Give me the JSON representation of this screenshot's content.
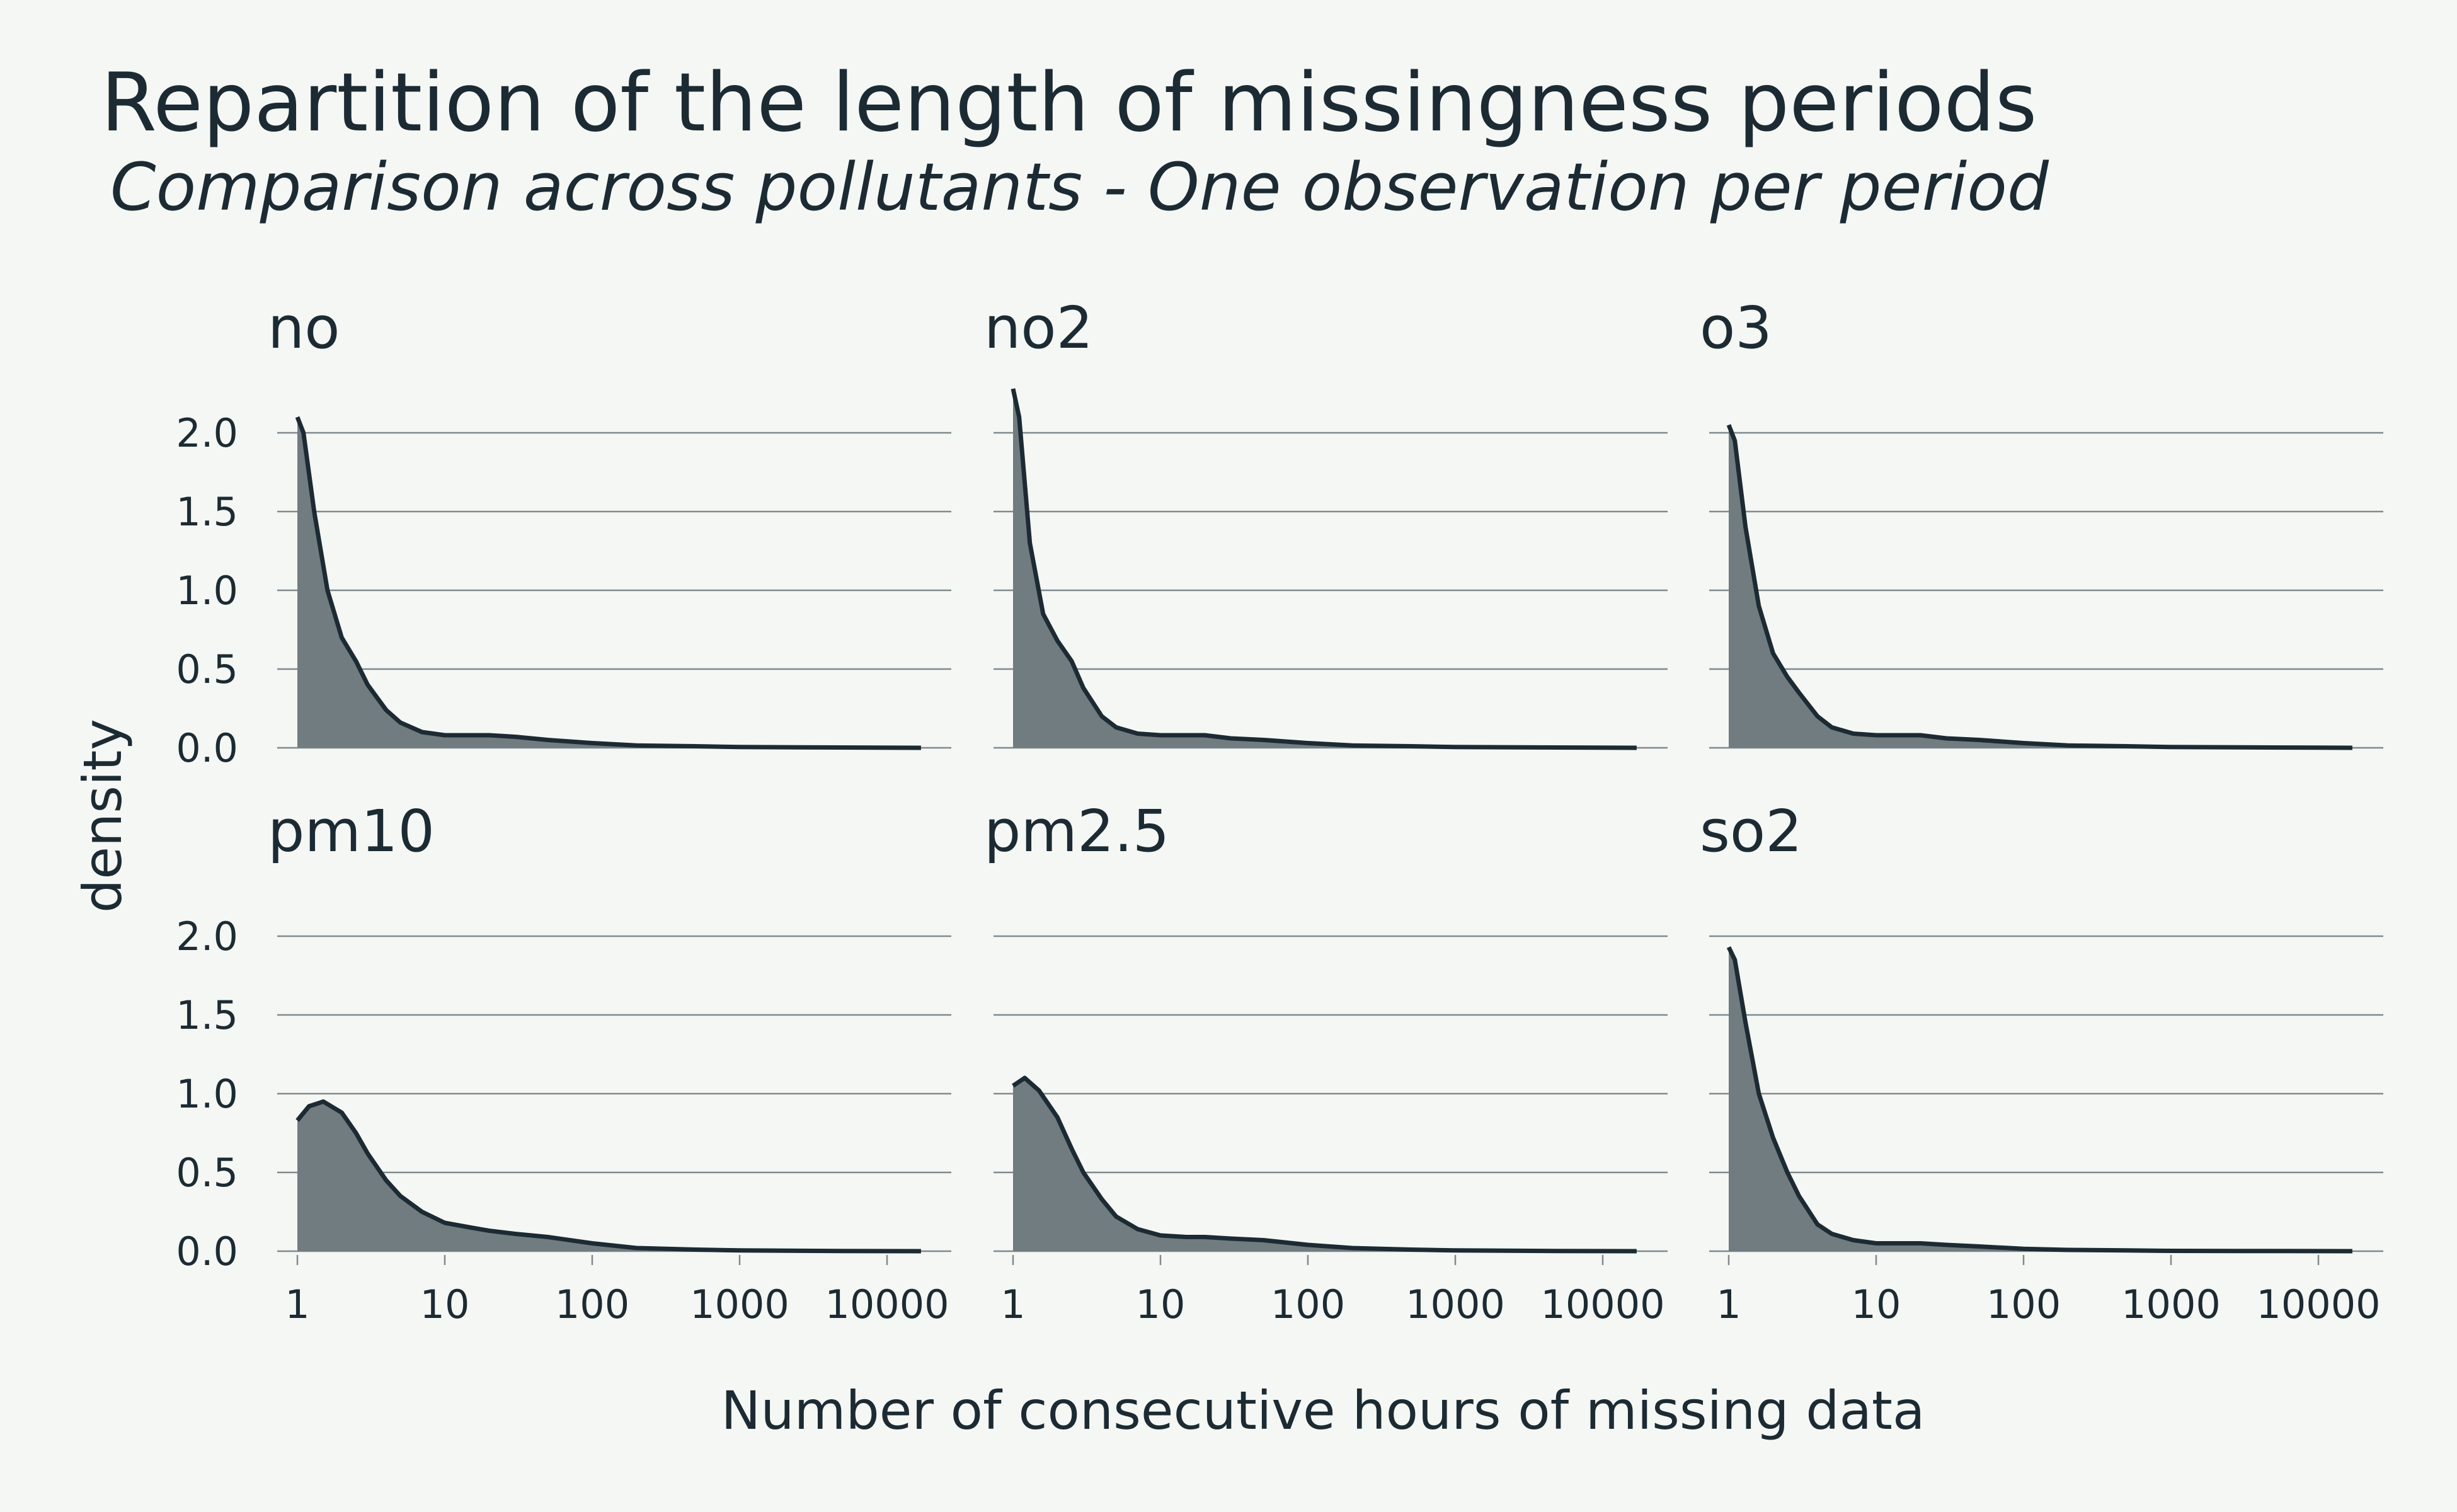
{
  "chart_data": {
    "type": "area",
    "title": "Repartition of the length of missingness periods",
    "subtitle": "Comparison across pollutants - One observation per period",
    "xlabel": "Number of consecutive hours of missing data",
    "ylabel": "density",
    "x_scale": "log10",
    "x_ticks": [
      "1",
      "10",
      "100",
      "1000",
      "10000"
    ],
    "xlim": [
      1,
      17000
    ],
    "y_ticks": [
      "0.0",
      "0.5",
      "1.0",
      "1.5",
      "2.0"
    ],
    "ylim": [
      0,
      2.3
    ],
    "grid": "horizontal",
    "colors": {
      "fill": "#717c80",
      "line": "#1c2b33",
      "grid": "#7f8a8e",
      "background": "#f5f7f4"
    },
    "panels": [
      {
        "name": "no",
        "x": [
          1,
          1.1,
          1.3,
          1.6,
          2,
          2.5,
          3,
          4,
          5,
          7,
          10,
          15,
          20,
          30,
          50,
          100,
          200,
          500,
          1000,
          5000,
          17000
        ],
        "y": [
          2.1,
          2.0,
          1.5,
          1.0,
          0.7,
          0.55,
          0.4,
          0.24,
          0.16,
          0.1,
          0.08,
          0.08,
          0.08,
          0.07,
          0.05,
          0.03,
          0.015,
          0.01,
          0.005,
          0.002,
          0.0
        ]
      },
      {
        "name": "no2",
        "x": [
          1,
          1.1,
          1.3,
          1.6,
          2,
          2.5,
          3,
          4,
          5,
          7,
          10,
          15,
          20,
          30,
          50,
          100,
          200,
          500,
          1000,
          5000,
          17000
        ],
        "y": [
          2.28,
          2.1,
          1.3,
          0.85,
          0.68,
          0.55,
          0.38,
          0.2,
          0.13,
          0.09,
          0.08,
          0.08,
          0.08,
          0.06,
          0.05,
          0.03,
          0.015,
          0.01,
          0.005,
          0.002,
          0.0
        ]
      },
      {
        "name": "o3",
        "x": [
          1,
          1.1,
          1.3,
          1.6,
          2,
          2.5,
          3,
          4,
          5,
          7,
          10,
          15,
          20,
          30,
          50,
          100,
          200,
          500,
          1000,
          5000,
          17000
        ],
        "y": [
          2.05,
          1.95,
          1.4,
          0.9,
          0.6,
          0.45,
          0.35,
          0.2,
          0.13,
          0.09,
          0.08,
          0.08,
          0.08,
          0.06,
          0.05,
          0.03,
          0.015,
          0.01,
          0.005,
          0.002,
          0.0
        ]
      },
      {
        "name": "pm10",
        "x": [
          1,
          1.2,
          1.5,
          2,
          2.5,
          3,
          4,
          5,
          7,
          10,
          15,
          20,
          30,
          50,
          100,
          200,
          500,
          1000,
          5000,
          17000
        ],
        "y": [
          0.83,
          0.92,
          0.95,
          0.88,
          0.75,
          0.62,
          0.45,
          0.35,
          0.25,
          0.18,
          0.15,
          0.13,
          0.11,
          0.09,
          0.05,
          0.02,
          0.01,
          0.005,
          0.001,
          0.0
        ]
      },
      {
        "name": "pm2.5",
        "x": [
          1,
          1.2,
          1.5,
          2,
          2.5,
          3,
          4,
          5,
          7,
          10,
          15,
          20,
          30,
          50,
          100,
          200,
          500,
          1000,
          5000,
          17000
        ],
        "y": [
          1.05,
          1.1,
          1.02,
          0.85,
          0.65,
          0.5,
          0.33,
          0.22,
          0.14,
          0.1,
          0.09,
          0.09,
          0.08,
          0.07,
          0.04,
          0.02,
          0.01,
          0.005,
          0.001,
          0.0
        ]
      },
      {
        "name": "so2",
        "x": [
          1,
          1.1,
          1.3,
          1.6,
          2,
          2.5,
          3,
          4,
          5,
          7,
          10,
          15,
          20,
          30,
          50,
          100,
          200,
          500,
          1000,
          5000,
          17000
        ],
        "y": [
          1.93,
          1.85,
          1.45,
          1.0,
          0.72,
          0.5,
          0.35,
          0.17,
          0.11,
          0.07,
          0.05,
          0.05,
          0.05,
          0.04,
          0.03,
          0.015,
          0.008,
          0.005,
          0.002,
          0.001,
          0.0
        ]
      }
    ]
  }
}
